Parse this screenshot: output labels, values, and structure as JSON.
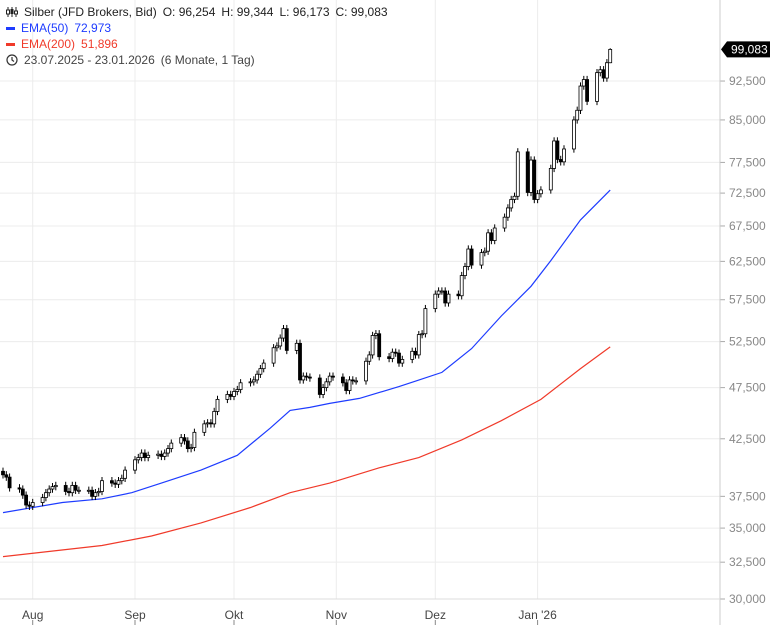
{
  "legend": {
    "instrument": "Silber (JFD Brokers, Bid)",
    "open": "O: 96,254",
    "high": "H: 99,344",
    "low": "L: 96,173",
    "close": "C: 99,083",
    "ema50_label": "EMA(50)",
    "ema50_value": "72,973",
    "ema200_label": "EMA(200)",
    "ema200_value": "51,896",
    "range": "23.07.2025 - 23.01.2026",
    "period": "(6 Monate, 1 Tag)",
    "icons": [
      "candlestick-icon",
      "clock-icon"
    ]
  },
  "colors": {
    "ema50": "#1e3cff",
    "ema200": "#f03a2a",
    "grid": "#ececec",
    "price_tag": "#000000"
  },
  "chart_data": {
    "type": "candlestick",
    "title": "Silber (JFD Brokers, Bid)",
    "scale": "log",
    "ylim": [
      29.0,
      103.0
    ],
    "yticks": [
      30,
      32.5,
      35,
      37.5,
      42.5,
      47.5,
      52.5,
      57.5,
      62.5,
      67.5,
      72.5,
      77.5,
      85,
      92.5
    ],
    "ytick_labels": [
      "30,000",
      "32,500",
      "35,000",
      "37,500",
      "42,500",
      "47,500",
      "52,500",
      "57,500",
      "62,500",
      "67,500",
      "72,500",
      "77,500",
      "85,000",
      "92,500"
    ],
    "xticks": [
      {
        "label": "Aug",
        "date": "2025-08-01"
      },
      {
        "label": "Sep",
        "date": "2025-09-01"
      },
      {
        "label": "Okt",
        "date": "2025-10-01"
      },
      {
        "label": "Nov",
        "date": "2025-11-01"
      },
      {
        "label": "Dez",
        "date": "2025-12-01"
      },
      {
        "label": "Jan '26",
        "date": "2026-01-01"
      }
    ],
    "start_date": "2025-07-23",
    "last_price_label": "99,083",
    "last_candle": {
      "open": 96.254,
      "high": 99.344,
      "low": 96.173,
      "close": 99.083
    },
    "first_open": 39.6,
    "closes": [
      39.3,
      39.1,
      38.2,
      38.1,
      37.6,
      36.8,
      36.7,
      37.0,
      37.4,
      37.8,
      38.1,
      38.3,
      38.4,
      37.9,
      37.8,
      38.4,
      38.0,
      38.0,
      38.0,
      37.5,
      37.8,
      37.9,
      38.8,
      38.6,
      38.5,
      38.8,
      39.0,
      39.7,
      40.6,
      40.8,
      41.2,
      40.8,
      41.0,
      41.1,
      40.9,
      41.2,
      41.6,
      42.1,
      42.6,
      42.3,
      41.6,
      41.7,
      43.1,
      43.9,
      44.0,
      43.9,
      45.1,
      46.3,
      46.8,
      46.6,
      47.1,
      47.3,
      48.0,
      48.1,
      48.3,
      48.9,
      49.5,
      50.1,
      51.8,
      52.0,
      52.9,
      54.0,
      51.5,
      52.3,
      48.3,
      48.7,
      48.6,
      48.5,
      46.8,
      47.5,
      48.1,
      48.7,
      48.6,
      48.0,
      47.2,
      48.3,
      48.2,
      48.2,
      50.3,
      51.0,
      53.2,
      53.4,
      50.8,
      50.6,
      51.3,
      51.2,
      50.1,
      50.5,
      51.4,
      51.0,
      53.3,
      53.4,
      56.4,
      58.2,
      58.6,
      58.6,
      57.1,
      58.2,
      58.0,
      60.6,
      61.8,
      64.2,
      62.0,
      63.7,
      63.9,
      66.5,
      65.4,
      67.2,
      68.8,
      70.2,
      71.5,
      72.0,
      79.3,
      72.6,
      77.9,
      71.5,
      72.4,
      73.0,
      76.5,
      81.2,
      78.0,
      77.6,
      79.8,
      85.0,
      86.8,
      91.5,
      92.8,
      88.5,
      94.2,
      94.8,
      93.1,
      96.254,
      99.083
    ],
    "series": [
      {
        "name": "EMA(50)",
        "points": [
          [
            "2025-07-23",
            36.2
          ],
          [
            "2025-08-10",
            37.0
          ],
          [
            "2025-08-22",
            37.3
          ],
          [
            "2025-08-31",
            37.8
          ],
          [
            "2025-09-09",
            38.6
          ],
          [
            "2025-09-21",
            39.7
          ],
          [
            "2025-10-02",
            41.0
          ],
          [
            "2025-10-12",
            43.5
          ],
          [
            "2025-10-18",
            45.2
          ],
          [
            "2025-10-24",
            45.5
          ],
          [
            "2025-10-30",
            45.9
          ],
          [
            "2025-11-08",
            46.4
          ],
          [
            "2025-11-20",
            47.6
          ],
          [
            "2025-12-03",
            49.1
          ],
          [
            "2025-12-12",
            51.7
          ],
          [
            "2025-12-21",
            55.5
          ],
          [
            "2025-12-30",
            59.2
          ],
          [
            "2026-01-05",
            62.6
          ],
          [
            "2026-01-14",
            68.4
          ],
          [
            "2026-01-23",
            72.973
          ]
        ]
      },
      {
        "name": "EMA(200)",
        "points": [
          [
            "2025-07-23",
            32.9
          ],
          [
            "2025-08-22",
            33.7
          ],
          [
            "2025-09-06",
            34.4
          ],
          [
            "2025-09-21",
            35.4
          ],
          [
            "2025-10-06",
            36.6
          ],
          [
            "2025-10-18",
            37.8
          ],
          [
            "2025-10-30",
            38.6
          ],
          [
            "2025-11-14",
            39.9
          ],
          [
            "2025-11-26",
            40.8
          ],
          [
            "2025-12-09",
            42.4
          ],
          [
            "2025-12-21",
            44.2
          ],
          [
            "2026-01-02",
            46.3
          ],
          [
            "2026-01-14",
            49.5
          ],
          [
            "2026-01-23",
            51.896
          ]
        ]
      }
    ]
  }
}
